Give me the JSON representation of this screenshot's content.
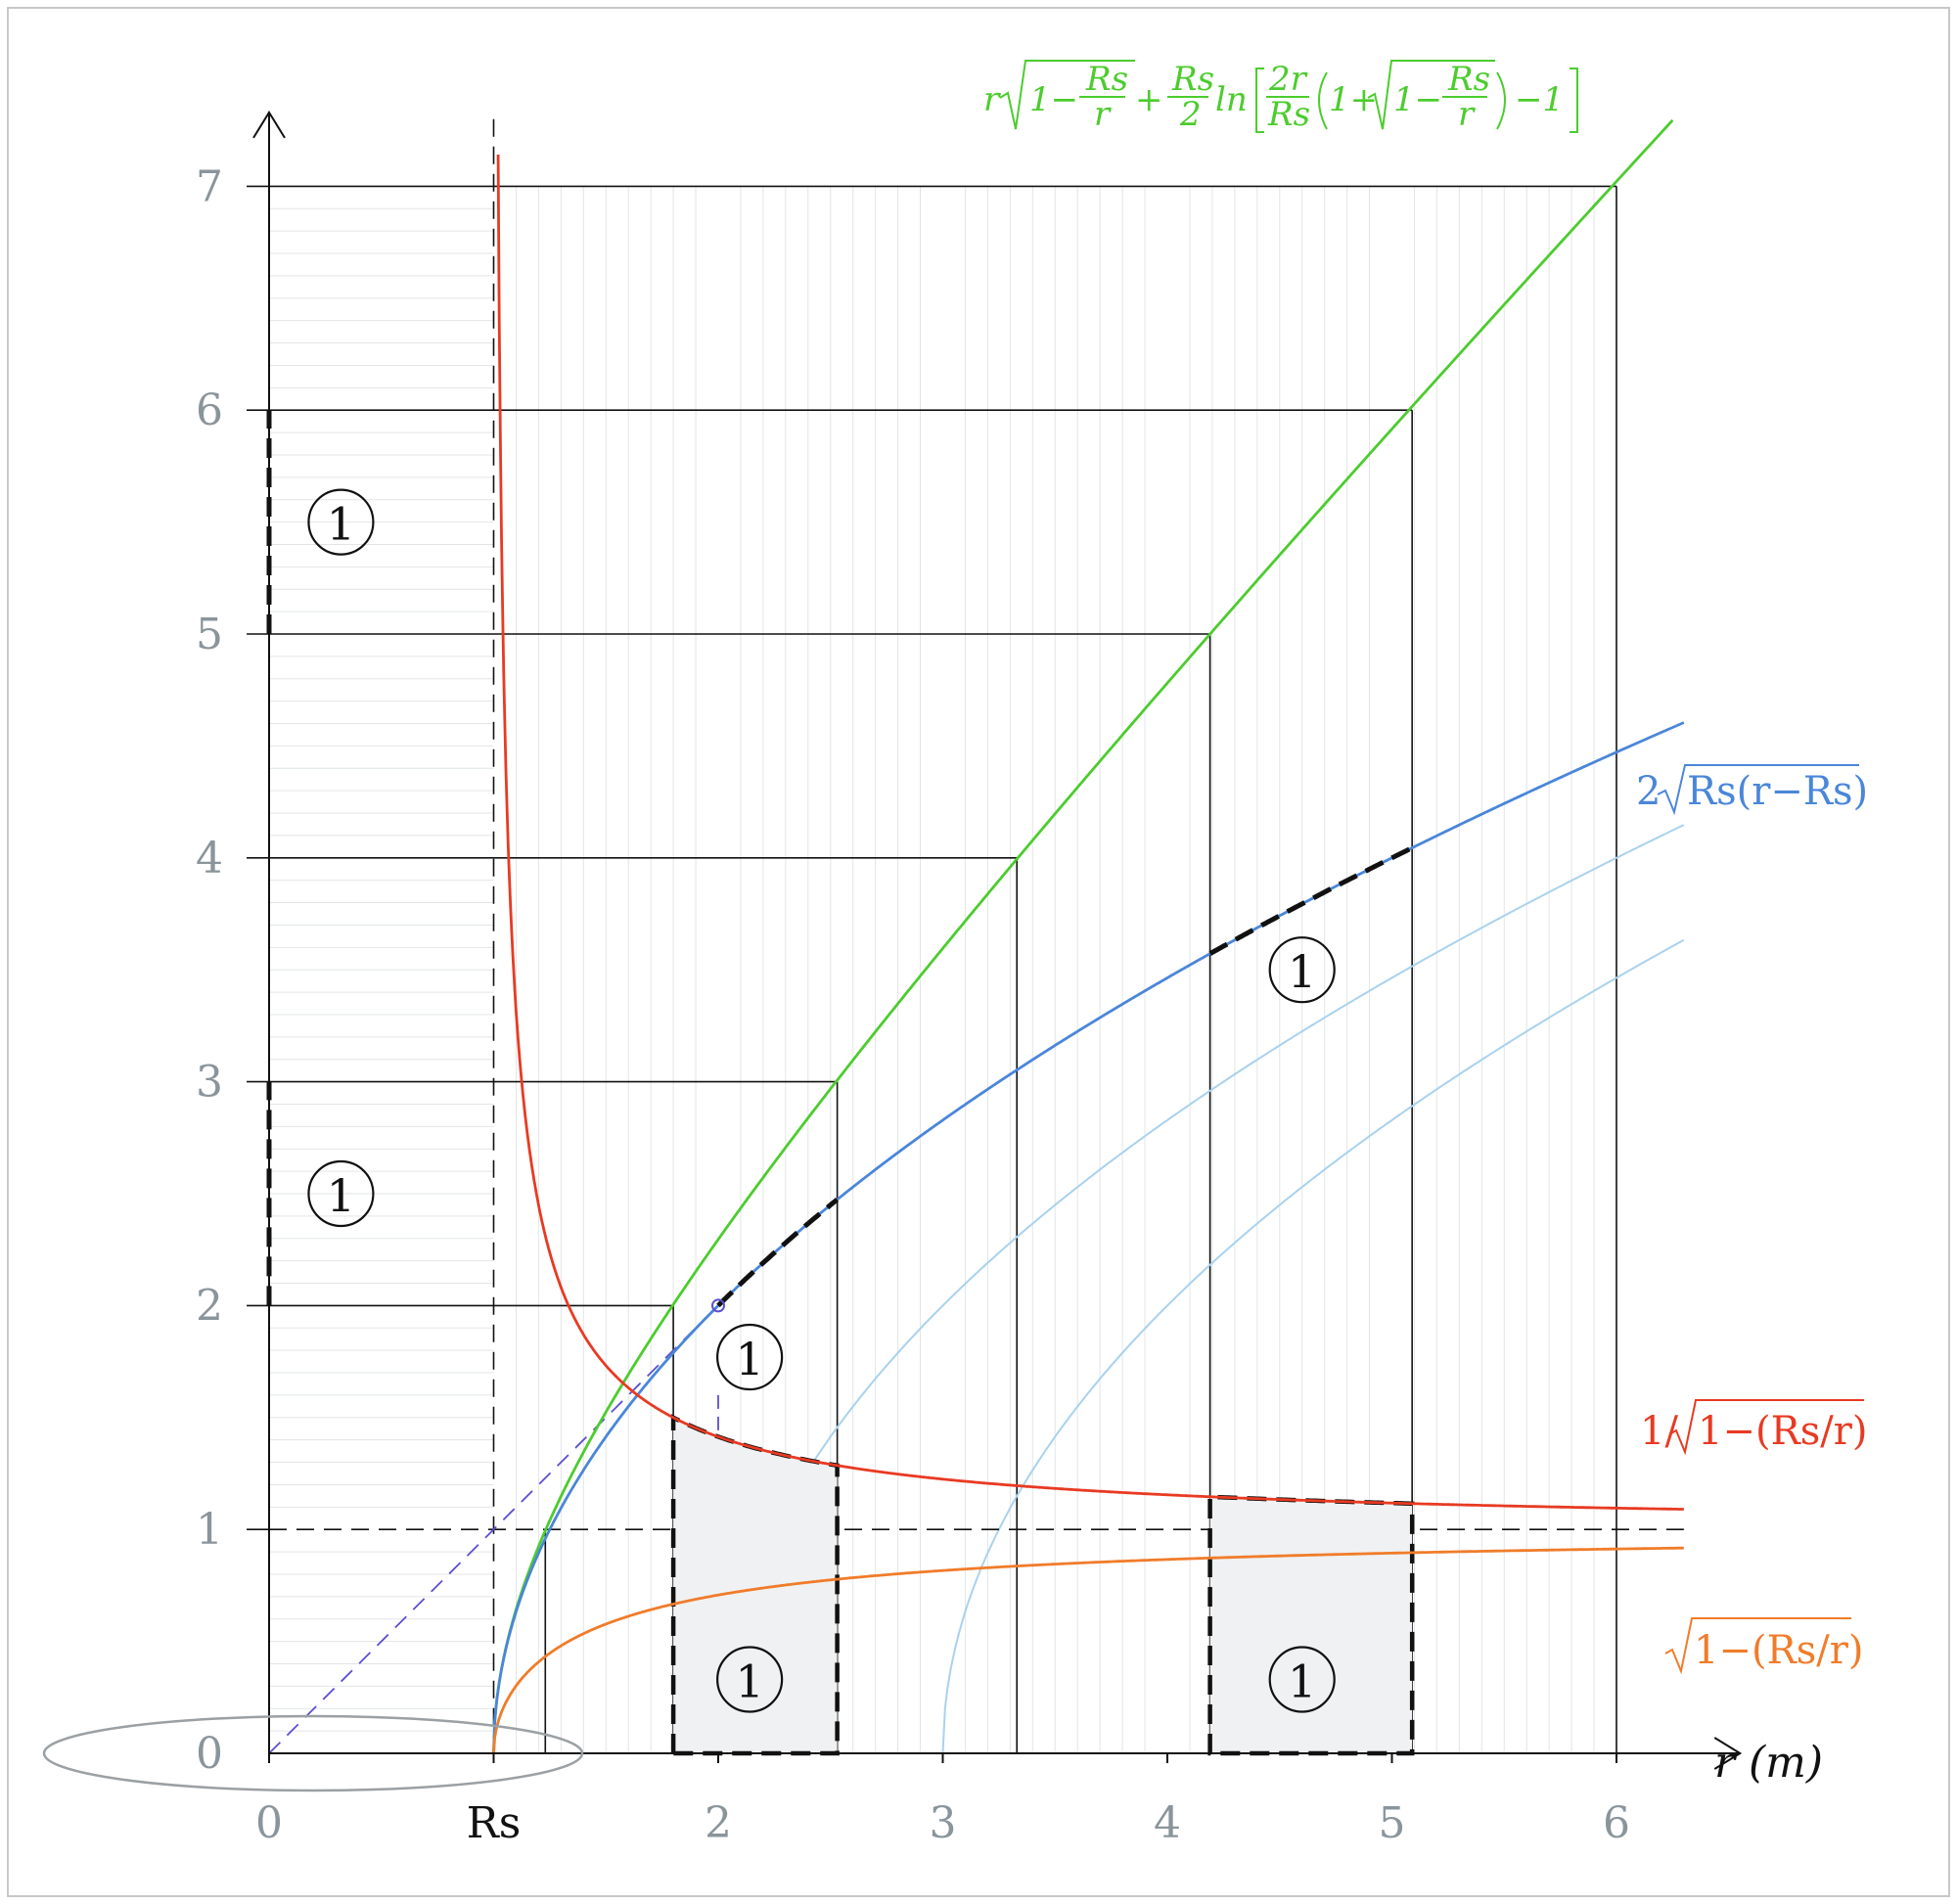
{
  "chart_data": {
    "type": "line",
    "xlabel": "r (m)",
    "x_ticks": [
      "0",
      "Rs",
      "2",
      "3",
      "4",
      "5",
      "6"
    ],
    "y_ticks": [
      "0",
      "1",
      "2",
      "3",
      "4",
      "5",
      "6",
      "7"
    ],
    "xlim": [
      0,
      6.3
    ],
    "ylim": [
      0,
      7.3
    ],
    "Rs": 1,
    "grid": true,
    "reference_line_y": 1,
    "series": [
      {
        "name": "r√(1−Rs/r) + (Rs/2)ln[(2r/Rs)(1+√(1−Rs/r))−1]",
        "color": "#4ccc2e",
        "x": [
          1.0,
          1.1,
          1.25,
          1.5,
          1.8,
          2.0,
          2.53,
          3.0,
          3.33,
          4.0,
          4.19,
          5.0,
          5.09,
          6.0,
          6.3
        ],
        "y": [
          0.0,
          0.52,
          0.92,
          1.43,
          2.0,
          2.33,
          3.0,
          3.62,
          4.0,
          4.78,
          5.0,
          5.89,
          6.0,
          7.0,
          7.33
        ]
      },
      {
        "name": "2√Rs(r−Rs)",
        "color": "#4a86d9",
        "x": [
          1.0,
          1.1,
          1.25,
          1.5,
          1.8,
          2.0,
          2.53,
          3.0,
          3.5,
          4.0,
          4.19,
          5.0,
          5.09,
          5.5,
          6.0,
          6.3
        ],
        "y": [
          0.0,
          0.63,
          1.0,
          1.41,
          1.79,
          2.0,
          2.47,
          2.83,
          3.16,
          3.46,
          3.57,
          4.0,
          4.04,
          4.24,
          4.47,
          4.6
        ]
      },
      {
        "name": "1/√1−(Rs/r)",
        "color": "#e83a22",
        "x": [
          1.02,
          1.05,
          1.1,
          1.2,
          1.3,
          1.5,
          1.8,
          2.0,
          2.53,
          3.0,
          4.0,
          4.19,
          5.0,
          5.09,
          6.0,
          6.3
        ],
        "y": [
          7.14,
          4.58,
          3.32,
          2.45,
          2.08,
          1.73,
          1.5,
          1.41,
          1.29,
          1.22,
          1.15,
          1.15,
          1.12,
          1.11,
          1.1,
          1.09
        ]
      },
      {
        "name": "√1−(Rs/r)",
        "color": "#f07c2a",
        "x": [
          1.0,
          1.02,
          1.05,
          1.1,
          1.2,
          1.3,
          1.5,
          1.8,
          2.0,
          2.53,
          3.0,
          4.0,
          5.0,
          6.0,
          6.3
        ],
        "y": [
          0.0,
          0.14,
          0.22,
          0.3,
          0.41,
          0.48,
          0.58,
          0.67,
          0.71,
          0.78,
          0.82,
          0.87,
          0.89,
          0.91,
          0.92
        ]
      }
    ],
    "unit_marker_label": "1"
  }
}
